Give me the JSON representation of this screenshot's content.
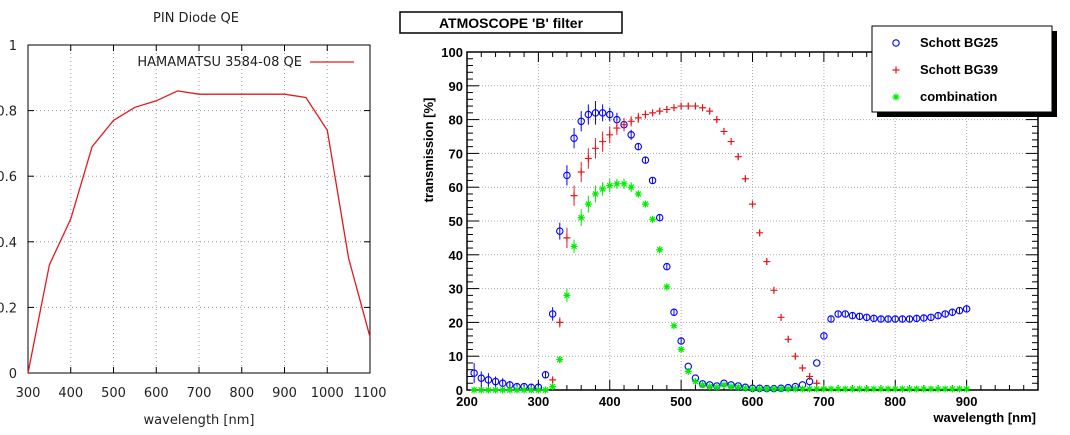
{
  "chart_data": [
    {
      "type": "line",
      "title": "PIN Diode QE",
      "xlabel": "wavelength [nm]",
      "ylabel": "",
      "xlim": [
        300,
        1100
      ],
      "ylim": [
        0,
        1
      ],
      "xticks": [
        300,
        400,
        500,
        600,
        700,
        800,
        900,
        1000,
        1100
      ],
      "xtick_labels": [
        "300",
        "400",
        "500",
        "600",
        "700",
        "800",
        "900",
        "1000",
        "1100"
      ],
      "yticks": [
        0,
        0.2,
        0.4,
        0.6,
        0.8,
        1
      ],
      "ytick_labels": [
        "0",
        "0.2",
        "0.4",
        "0.6",
        "0.8",
        "1"
      ],
      "grid": true,
      "legend_position": "top-right",
      "series": [
        {
          "name": "HAMAMATSU 3584-08 QE",
          "color": "#e31a1c",
          "x": [
            300,
            350,
            400,
            450,
            500,
            550,
            600,
            650,
            700,
            750,
            800,
            850,
            900,
            950,
            1000,
            1050,
            1100
          ],
          "y": [
            0.0,
            0.33,
            0.47,
            0.69,
            0.77,
            0.81,
            0.83,
            0.86,
            0.85,
            0.85,
            0.85,
            0.85,
            0.85,
            0.84,
            0.74,
            0.35,
            0.11
          ]
        }
      ]
    },
    {
      "type": "scatter",
      "title": "ATMOSCOPE 'B' filter",
      "xlabel": "wavelength [nm]",
      "ylabel": "transmission [%]",
      "xlim": [
        200,
        1000
      ],
      "ylim": [
        0,
        100
      ],
      "xticks": [
        200,
        300,
        400,
        500,
        600,
        700,
        800,
        900
      ],
      "xtick_labels": [
        "200",
        "300",
        "400",
        "500",
        "600",
        "700",
        "800",
        "900"
      ],
      "yticks": [
        0,
        10,
        20,
        30,
        40,
        50,
        60,
        70,
        80,
        90,
        100
      ],
      "ytick_labels": [
        "0",
        "10",
        "20",
        "30",
        "40",
        "50",
        "60",
        "70",
        "80",
        "90",
        "100"
      ],
      "grid": true,
      "legend_position": "top-right",
      "series": [
        {
          "name": "Schott BG25",
          "color": "#0000ff",
          "marker": "open-circle",
          "x": [
            210,
            220,
            230,
            240,
            250,
            260,
            270,
            280,
            290,
            300,
            310,
            320,
            330,
            340,
            350,
            360,
            370,
            380,
            390,
            400,
            410,
            420,
            430,
            440,
            450,
            460,
            470,
            480,
            490,
            500,
            510,
            520,
            530,
            540,
            550,
            560,
            570,
            580,
            590,
            600,
            610,
            620,
            630,
            640,
            650,
            660,
            670,
            680,
            690,
            700,
            710,
            720,
            730,
            740,
            750,
            760,
            770,
            780,
            790,
            800,
            810,
            820,
            830,
            840,
            850,
            860,
            870,
            880,
            890,
            900
          ],
          "y": [
            5,
            3.5,
            3,
            2.5,
            2,
            1.5,
            1,
            1,
            0.8,
            0.8,
            4.5,
            22.5,
            47,
            63.5,
            74.5,
            79.5,
            81.5,
            82,
            82,
            81.5,
            80,
            78.5,
            75.5,
            72,
            68,
            62,
            51,
            36.5,
            23,
            14.5,
            7,
            3.5,
            1.8,
            1.5,
            1.2,
            2,
            1.5,
            1.2,
            0.8,
            0.5,
            0.5,
            0.4,
            0.4,
            0.5,
            0.7,
            1,
            1.5,
            2.5,
            8,
            16,
            21,
            22.5,
            22.5,
            22,
            21.8,
            21.5,
            21.2,
            21,
            21,
            21,
            21,
            21,
            21.2,
            21.3,
            21.5,
            22,
            22.5,
            23,
            23.5,
            24
          ],
          "err": [
            3,
            2,
            2,
            1.5,
            1.5,
            1.2,
            1,
            1,
            1,
            1,
            1,
            2,
            2.5,
            3,
            3,
            3,
            3,
            3.5,
            2.5,
            2,
            2,
            1.5,
            1.5,
            1,
            1,
            1,
            0.8,
            0.8,
            0.8,
            0.8,
            0.6,
            0.6,
            0.5,
            0.5,
            0.5,
            0.5,
            0.5,
            0.5,
            0.5,
            0.5,
            0.5,
            0.5,
            0.5,
            0.5,
            0.5,
            0.5,
            0.5,
            0.5,
            0.6,
            0.7,
            0.8,
            0.8,
            0.8,
            0.8,
            0.8,
            0.8,
            0.8,
            0.8,
            0.8,
            0.8,
            0.8,
            0.8,
            0.8,
            0.8,
            0.8,
            0.8,
            0.8,
            0.8,
            0.8,
            0.8
          ]
        },
        {
          "name": "Schott BG39",
          "color": "#e31a1c",
          "marker": "plus",
          "x": [
            320,
            330,
            340,
            350,
            360,
            370,
            380,
            390,
            400,
            410,
            420,
            430,
            440,
            450,
            460,
            470,
            480,
            490,
            500,
            510,
            520,
            530,
            540,
            550,
            560,
            570,
            580,
            590,
            600,
            610,
            620,
            630,
            640,
            650,
            660,
            670,
            680,
            690,
            700
          ],
          "y": [
            3,
            20,
            45,
            57.5,
            64.5,
            68.5,
            71.5,
            73.5,
            75.5,
            77.5,
            78.5,
            79.5,
            80.5,
            81.5,
            82,
            82.5,
            83,
            83.5,
            84,
            84,
            84,
            83.5,
            82.5,
            80,
            76.5,
            73.5,
            69,
            62.5,
            55,
            46.5,
            38,
            29.5,
            21.5,
            15,
            10,
            6.5,
            4,
            2,
            0.5
          ],
          "err": [
            1,
            1.5,
            3,
            3,
            3,
            3,
            3,
            3,
            2.5,
            2,
            2,
            1.5,
            1.5,
            1.2,
            1,
            1,
            1,
            1,
            1,
            1,
            1,
            1,
            1,
            1,
            1,
            1,
            1,
            1,
            1,
            1,
            1,
            1,
            1,
            1,
            1,
            1,
            1,
            1,
            0.5
          ]
        },
        {
          "name": "combination",
          "color": "#00ee00",
          "marker": "star",
          "x": [
            210,
            220,
            230,
            240,
            250,
            260,
            270,
            280,
            290,
            300,
            310,
            320,
            330,
            340,
            350,
            360,
            370,
            380,
            390,
            400,
            410,
            420,
            430,
            440,
            450,
            460,
            470,
            480,
            490,
            500,
            510,
            520,
            530,
            540,
            550,
            560,
            570,
            580,
            590,
            600,
            610,
            620,
            630,
            640,
            650,
            660,
            670,
            680,
            690,
            700,
            710,
            720,
            730,
            740,
            750,
            760,
            770,
            780,
            790,
            800,
            810,
            820,
            830,
            840,
            850,
            860,
            870,
            880,
            890,
            900
          ],
          "y": [
            0,
            0,
            0,
            0,
            0,
            0,
            0,
            0,
            0,
            0,
            0,
            1,
            9,
            28,
            42.5,
            51,
            55,
            58,
            59.5,
            60.5,
            61,
            61,
            60,
            58,
            55,
            50.5,
            41.5,
            30.5,
            19,
            12,
            5.5,
            2.5,
            1.5,
            1,
            0.8,
            1.5,
            1,
            0.8,
            0.5,
            0.3,
            0.3,
            0.3,
            0.3,
            0.3,
            0.3,
            0.3,
            0.3,
            0.3,
            0.3,
            0.3,
            0.3,
            0.3,
            0.3,
            0.3,
            0.3,
            0.3,
            0.3,
            0.3,
            0.3,
            0.3,
            0.3,
            0.3,
            0.3,
            0.3,
            0.3,
            0.3,
            0.3,
            0.3,
            0.3,
            0.3
          ],
          "err": [
            0.5,
            0.5,
            0.5,
            0.5,
            0.5,
            0.5,
            0.5,
            0.5,
            0.5,
            0.5,
            0.5,
            0.5,
            1,
            2,
            2,
            2.5,
            2.5,
            2.5,
            2,
            2,
            1.5,
            1.5,
            1.5,
            1,
            1,
            1,
            1,
            1,
            0.8,
            0.8,
            0.6,
            0.5,
            0.5,
            0.5,
            0.5,
            0.5,
            0.5,
            0.5,
            0.5,
            0.5,
            0.5,
            0.5,
            0.5,
            0.5,
            0.5,
            0.5,
            0.5,
            0.5,
            0.5,
            0.5,
            0.5,
            0.5,
            0.5,
            0.5,
            0.5,
            0.5,
            0.5,
            0.5,
            0.5,
            0.5,
            0.5,
            0.5,
            0.5,
            0.5,
            0.5,
            0.5,
            0.5,
            0.5,
            0.5,
            0.5
          ]
        }
      ]
    }
  ]
}
